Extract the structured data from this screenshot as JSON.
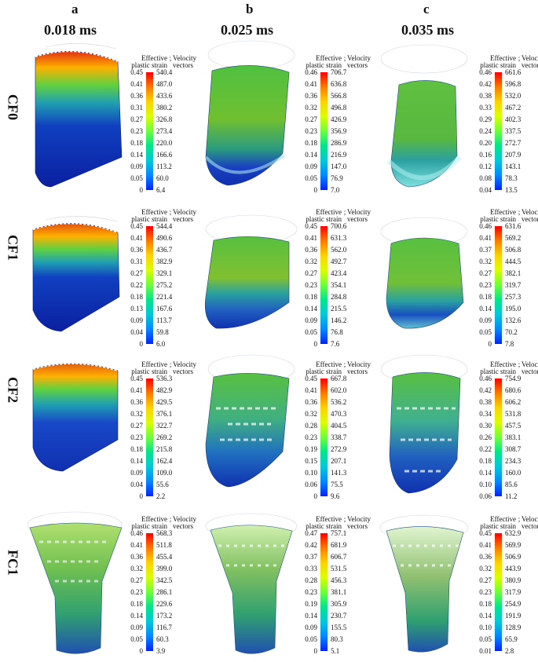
{
  "columns": [
    {
      "letter": "a",
      "time": "0.018 ms"
    },
    {
      "letter": "b",
      "time": "0.025 ms"
    },
    {
      "letter": "c",
      "time": "0.035 ms"
    }
  ],
  "rows": [
    "CF0",
    "CF1",
    "CF2",
    "FC1"
  ],
  "legend_labels": {
    "strain_line1": "Effective",
    "strain_line2": "plastic strain",
    "sep": ";",
    "velocity_line1": "Velocity",
    "velocity_line2": "vectors"
  },
  "colorbar_gradient": [
    "#ff0000",
    "#ff7a00",
    "#ffd200",
    "#d9ff00",
    "#6dff3a",
    "#00e68a",
    "#00c8d8",
    "#0088ff",
    "#0022ff"
  ],
  "colorbars": [
    [
      {
        "strain": [
          "0.45",
          "0.41",
          "0.36",
          "0.31",
          "0.27",
          "0.23",
          "0.18",
          "0.14",
          "0.09",
          "0.05",
          "0"
        ],
        "velocity": [
          "540.4",
          "487.0",
          "433.6",
          "380.2",
          "326.8",
          "273.4",
          "220.0",
          "166.6",
          "113.2",
          "60.0",
          "6.4"
        ]
      },
      {
        "strain": [
          "0.46",
          "0.41",
          "0.36",
          "0.32",
          "0.27",
          "0.23",
          "0.18",
          "0.14",
          "0.09",
          "0.05",
          "0"
        ],
        "velocity": [
          "706.7",
          "636.8",
          "566.8",
          "496.8",
          "426.9",
          "356.9",
          "286.9",
          "216.9",
          "147.0",
          "76.9",
          "7.0"
        ]
      },
      {
        "strain": [
          "0.46",
          "0.42",
          "0.38",
          "0.33",
          "0.29",
          "0.24",
          "0.20",
          "0.16",
          "0.12",
          "0.08",
          "0.04"
        ],
        "velocity": [
          "661.6",
          "596.8",
          "532.0",
          "467.2",
          "402.3",
          "337.5",
          "272.7",
          "207.9",
          "143.1",
          "78.3",
          "13.5"
        ]
      }
    ],
    [
      {
        "strain": [
          "0.45",
          "0.41",
          "0.36",
          "0.31",
          "0.27",
          "0.22",
          "0.18",
          "0.13",
          "0.09",
          "0.04",
          "0"
        ],
        "velocity": [
          "544.4",
          "490.6",
          "436.7",
          "382.9",
          "329.1",
          "275.2",
          "221.4",
          "167.6",
          "113.7",
          "59.8",
          "6.0"
        ]
      },
      {
        "strain": [
          "0.45",
          "0.41",
          "0.36",
          "0.32",
          "0.27",
          "0.23",
          "0.18",
          "0.14",
          "0.09",
          "0.05",
          "0"
        ],
        "velocity": [
          "700.6",
          "631.3",
          "562.0",
          "492.7",
          "423.4",
          "354.1",
          "284.8",
          "215.5",
          "146.2",
          "76.8",
          "7.6"
        ]
      },
      {
        "strain": [
          "0.46",
          "0.41",
          "0.37",
          "0.32",
          "0.27",
          "0.23",
          "0.18",
          "0.14",
          "0.09",
          "0.05",
          "0"
        ],
        "velocity": [
          "631.6",
          "569.2",
          "506.8",
          "444.5",
          "382.1",
          "319.7",
          "257.3",
          "195.0",
          "132.6",
          "70.2",
          "7.8"
        ]
      }
    ],
    [
      {
        "strain": [
          "0.45",
          "0.41",
          "0.36",
          "0.32",
          "0.27",
          "0.23",
          "0.18",
          "0.14",
          "0.09",
          "0.04",
          "0"
        ],
        "velocity": [
          "536.3",
          "482.9",
          "429.5",
          "376.1",
          "322.7",
          "269.2",
          "215.8",
          "162.4",
          "109.0",
          "55.6",
          "2.2"
        ]
      },
      {
        "strain": [
          "0.45",
          "0.41",
          "0.36",
          "0.32",
          "0.28",
          "0.23",
          "0.19",
          "0.15",
          "0.10",
          "0.06",
          "0"
        ],
        "velocity": [
          "667.8",
          "602.0",
          "536.2",
          "470.3",
          "404.5",
          "338.7",
          "272.9",
          "207.1",
          "141.3",
          "75.5",
          "9.6"
        ]
      },
      {
        "strain": [
          "0.46",
          "0.42",
          "0.38",
          "0.34",
          "0.30",
          "0.26",
          "0.22",
          "0.18",
          "0.14",
          "0.10",
          "0.06"
        ],
        "velocity": [
          "754.9",
          "680.6",
          "606.2",
          "531.8",
          "457.5",
          "383.1",
          "308.7",
          "234.3",
          "160.0",
          "85.6",
          "11.2"
        ]
      }
    ],
    [
      {
        "strain": [
          "0.46",
          "0.41",
          "0.36",
          "0.32",
          "0.27",
          "0.23",
          "0.18",
          "0.14",
          "0.09",
          "0.05",
          "0"
        ],
        "velocity": [
          "568.3",
          "511.8",
          "455.4",
          "399.0",
          "342.5",
          "286.1",
          "229.6",
          "173.2",
          "116.7",
          "60.3",
          "3.9"
        ]
      },
      {
        "strain": [
          "0.47",
          "0.42",
          "0.37",
          "0.33",
          "0.28",
          "0.23",
          "0.19",
          "0.14",
          "0.09",
          "0.05",
          "0"
        ],
        "velocity": [
          "757.1",
          "681.9",
          "606.7",
          "531.5",
          "456.3",
          "381.1",
          "305.9",
          "230.7",
          "155.5",
          "80.3",
          "5.1"
        ]
      },
      {
        "strain": [
          "0.45",
          "0.41",
          "0.36",
          "0.32",
          "0.27",
          "0.23",
          "0.18",
          "0.14",
          "0.10",
          "0.05",
          "0.01"
        ],
        "velocity": [
          "632.9",
          "569.9",
          "506.9",
          "443.9",
          "380.9",
          "317.9",
          "254.9",
          "191.9",
          "128.9",
          "65.9",
          "2.8"
        ]
      }
    ]
  ]
}
